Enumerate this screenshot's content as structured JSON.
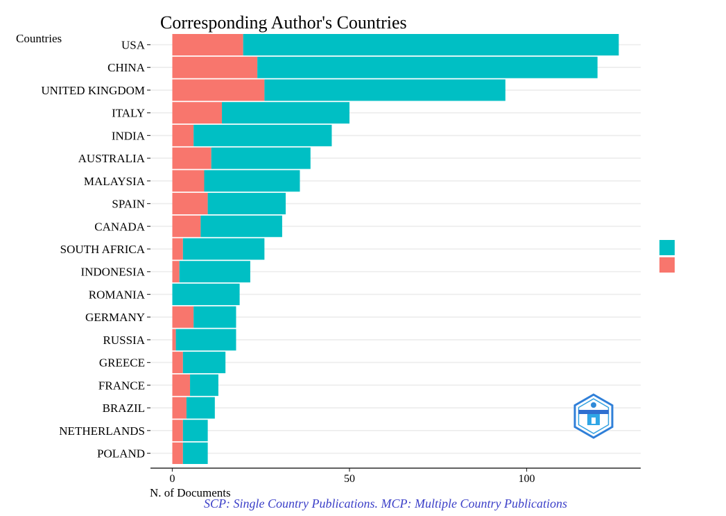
{
  "chart_data": {
    "type": "bar",
    "orientation": "horizontal",
    "stacked": true,
    "title": "Corresponding Author's Countries",
    "ylabel": "Countries",
    "xlabel": "N. of Documents",
    "caption": "SCP: Single Country Publications. MCP: Multiple Country Publications",
    "xlim": [
      -6,
      133
    ],
    "xticks": [
      0,
      50,
      100
    ],
    "grid": true,
    "legend_position": "right",
    "categories": [
      "USA",
      "CHINA",
      "UNITED KINGDOM",
      "ITALY",
      "INDIA",
      "AUSTRALIA",
      "MALAYSIA",
      "SPAIN",
      "CANADA",
      "SOUTH AFRICA",
      "INDONESIA",
      "ROMANIA",
      "GERMANY",
      "RUSSIA",
      "GREECE",
      "FRANCE",
      "BRAZIL",
      "NETHERLANDS",
      "POLAND"
    ],
    "series": [
      {
        "name": "MCP",
        "color": "#F8766D",
        "values": [
          20,
          24,
          26,
          14,
          6,
          11,
          9,
          10,
          8,
          3,
          2,
          0,
          6,
          1,
          3,
          5,
          4,
          3,
          3
        ]
      },
      {
        "name": "SCP",
        "color": "#00BFC4",
        "values": [
          106,
          96,
          68,
          36,
          39,
          28,
          27,
          22,
          23,
          23,
          20,
          19,
          12,
          17,
          12,
          8,
          8,
          7,
          7
        ]
      }
    ],
    "legend_colors": [
      "#00BFC4",
      "#F8766D"
    ]
  },
  "logo_icon": "hexagon-logo-icon"
}
